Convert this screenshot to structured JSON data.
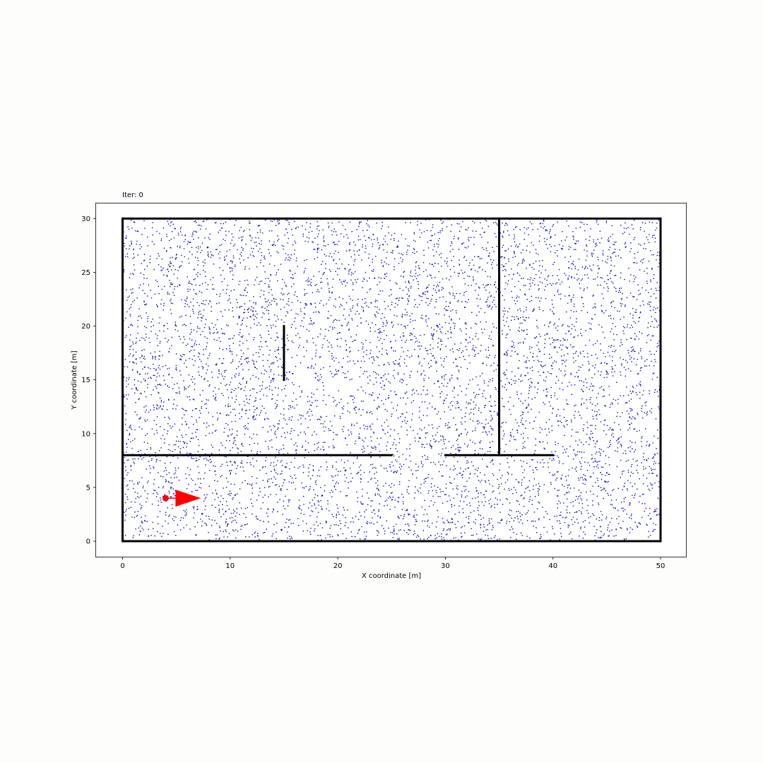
{
  "chart_data": {
    "type": "scatter",
    "title": "Iter: 0",
    "xlabel": "X coordinate [m]",
    "ylabel": "Y coordinate [m]",
    "xlim": [
      -2.5,
      52.5
    ],
    "ylim": [
      -1.5,
      31.5
    ],
    "xticks": [
      0,
      10,
      20,
      30,
      40,
      50
    ],
    "yticks": [
      0,
      5,
      10,
      15,
      20,
      25,
      30
    ],
    "grid": false,
    "particles": {
      "color": "#0000cc",
      "count": 7000,
      "x_range": [
        0,
        50
      ],
      "y_range": [
        0,
        30
      ]
    },
    "walls": [
      {
        "x": [
          0,
          50
        ],
        "y": [
          0,
          0
        ]
      },
      {
        "x": [
          50,
          50
        ],
        "y": [
          0,
          30
        ]
      },
      {
        "x": [
          50,
          0
        ],
        "y": [
          30,
          30
        ]
      },
      {
        "x": [
          0,
          0
        ],
        "y": [
          30,
          0
        ]
      },
      {
        "x": [
          0,
          25
        ],
        "y": [
          8,
          8
        ]
      },
      {
        "x": [
          30,
          40
        ],
        "y": [
          8,
          8
        ]
      },
      {
        "x": [
          35,
          35
        ],
        "y": [
          8,
          30
        ]
      },
      {
        "x": [
          15,
          15
        ],
        "y": [
          15,
          20
        ]
      }
    ],
    "wall_color": "#000000",
    "robot": {
      "x": 4,
      "y": 4,
      "heading": "east",
      "color": "#ff0000"
    }
  }
}
